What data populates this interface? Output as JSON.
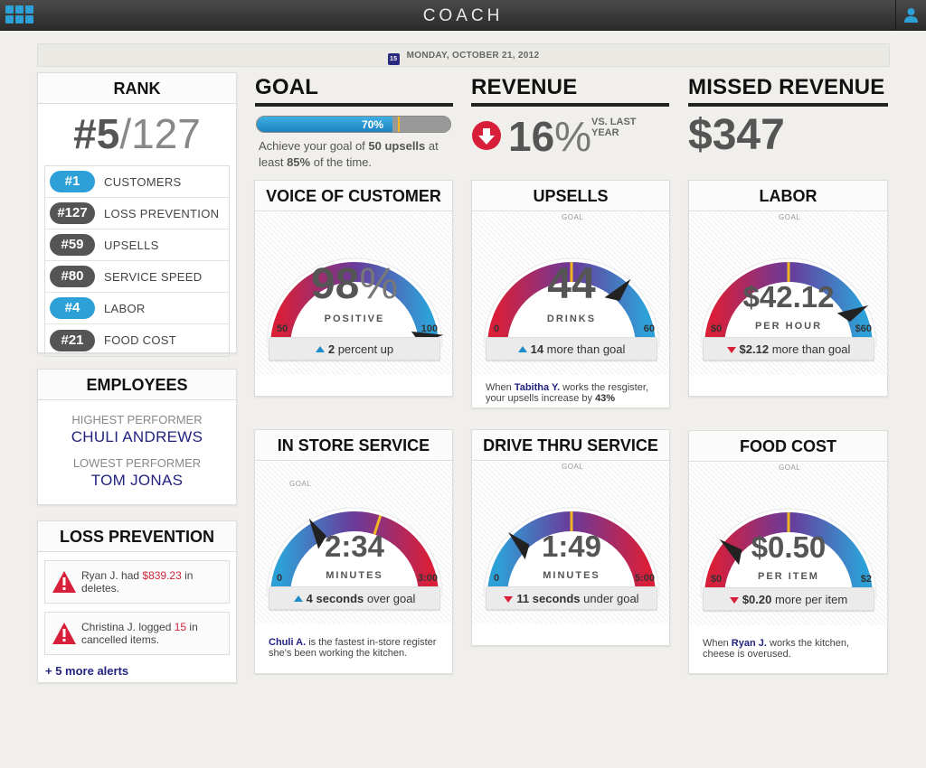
{
  "app": {
    "title": "COACH"
  },
  "date": {
    "label": "MONDAY, OCTOBER 21, 2012",
    "cal_day": "15"
  },
  "rank": {
    "title": "RANK",
    "position": "#5",
    "total": "/127",
    "items": [
      {
        "badge": "#1",
        "label": "CUSTOMERS",
        "color": "blue"
      },
      {
        "badge": "#127",
        "label": "LOSS PREVENTION",
        "color": "dark"
      },
      {
        "badge": "#59",
        "label": "UPSELLS",
        "color": "dark"
      },
      {
        "badge": "#80",
        "label": "SERVICE SPEED",
        "color": "dark"
      },
      {
        "badge": "#4",
        "label": "LABOR",
        "color": "blue"
      },
      {
        "badge": "#21",
        "label": "FOOD COST",
        "color": "dark"
      }
    ]
  },
  "employees": {
    "title": "EMPLOYEES",
    "highest_label": "HIGHEST PERFORMER",
    "highest_name": "CHULI ANDREWS",
    "lowest_label": "LOWEST PERFORMER",
    "lowest_name": "TOM JONAS"
  },
  "loss_prevention": {
    "title": "LOSS PREVENTION",
    "alerts": [
      {
        "name": "Ryan J.",
        "verb": " had ",
        "value": "$839.23",
        "rest": " in deletes."
      },
      {
        "name": "Christina J.",
        "verb": " logged ",
        "value": "15",
        "rest": " in cancelled items."
      }
    ],
    "more": "+ 5 more alerts"
  },
  "goal": {
    "title": "GOAL",
    "progress_pct": 70,
    "progress_label": "70%",
    "goal_mark_pct": 73,
    "text_pre": "Achieve your goal of ",
    "text_b1": "50 upsells",
    "text_mid": " at least ",
    "text_b2": "85%",
    "text_post": " of the time."
  },
  "revenue": {
    "title": "REVENUE",
    "value": "16",
    "unit": "%",
    "vs": "VS. LAST YEAR",
    "direction": "down"
  },
  "missed_revenue": {
    "title": "MISSED REVENUE",
    "value": "$347"
  },
  "gauges": {
    "voice": {
      "title": "VOICE OF CUSTOMER",
      "value": "98",
      "value_suffix": "%",
      "unit": "POSITIVE",
      "min": "50",
      "max": "100",
      "level": 0.96,
      "goal_label": "",
      "footer_dir": "up",
      "footer_b": "2",
      "footer_rest": " percent up",
      "colors": [
        "#d81f3a",
        "#6a3a9a",
        "#2ea0d8"
      ]
    },
    "upsells": {
      "title": "UPSELLS",
      "value": "44",
      "value_suffix": "",
      "unit": "DRINKS",
      "min": "0",
      "max": "60",
      "level": 0.73,
      "goal_label": "GOAL",
      "goal_level": 0.5,
      "footer_dir": "up",
      "footer_b": "14",
      "footer_rest": " more than goal",
      "note_pre": "When ",
      "note_name": "Tabitha Y.",
      "note_mid": " works the resgister, your upsells increase by ",
      "note_val": "43%",
      "colors": [
        "#d81f3a",
        "#6a3a9a",
        "#2ea0d8"
      ]
    },
    "labor": {
      "title": "LABOR",
      "value": "$42.12",
      "value_suffix": "",
      "unit": "PER HOUR",
      "min": "$0",
      "max": "$60",
      "level": 0.85,
      "goal_label": "GOAL",
      "goal_level": 0.5,
      "footer_dir": "down",
      "footer_b": "$2.12",
      "footer_rest": " more than goal",
      "colors": [
        "#d81f3a",
        "#6a3a9a",
        "#2ea0d8"
      ]
    },
    "instore": {
      "title": "IN STORE SERVICE",
      "value": "2:34",
      "value_suffix": "",
      "unit": "MINUTES",
      "min": "0",
      "max": "3:00",
      "level": 0.33,
      "goal_label": "GOAL",
      "goal_level": 0.6,
      "footer_dir": "up",
      "footer_b": "4 seconds",
      "footer_rest": " over goal",
      "note_name": "Chuli A.",
      "note_mid": " is the fastest in-store register she's been working the kitchen.",
      "colors": [
        "#2ea0d8",
        "#6a3a9a",
        "#d81f3a"
      ]
    },
    "drivethru": {
      "title": "DRIVE THRU SERVICE",
      "value": "1:49",
      "value_suffix": "",
      "unit": "MINUTES",
      "min": "0",
      "max": "5:00",
      "level": 0.25,
      "goal_label": "GOAL",
      "goal_level": 0.5,
      "footer_dir": "down",
      "footer_b": "11 seconds",
      "footer_rest": " under goal",
      "colors": [
        "#2ea0d8",
        "#6a3a9a",
        "#d81f3a"
      ]
    },
    "foodcost": {
      "title": "FOOD COST",
      "value": "$0.50",
      "value_suffix": "",
      "unit": "PER ITEM",
      "min": "$0",
      "max": "$2",
      "level": 0.22,
      "goal_label": "GOAL",
      "goal_level": 0.5,
      "footer_dir": "down",
      "footer_b": "$0.20",
      "footer_rest": " more per item",
      "note_pre": "When ",
      "note_name": "Ryan J.",
      "note_mid": " works the kitchen, cheese is overused.",
      "colors": [
        "#d81f3a",
        "#6a3a9a",
        "#2ea0d8"
      ]
    }
  },
  "colors": {
    "accent_blue": "#2ea0d8",
    "alert_red": "#d81f3a",
    "link_navy": "#232380",
    "goal_yellow": "#f2b624"
  }
}
